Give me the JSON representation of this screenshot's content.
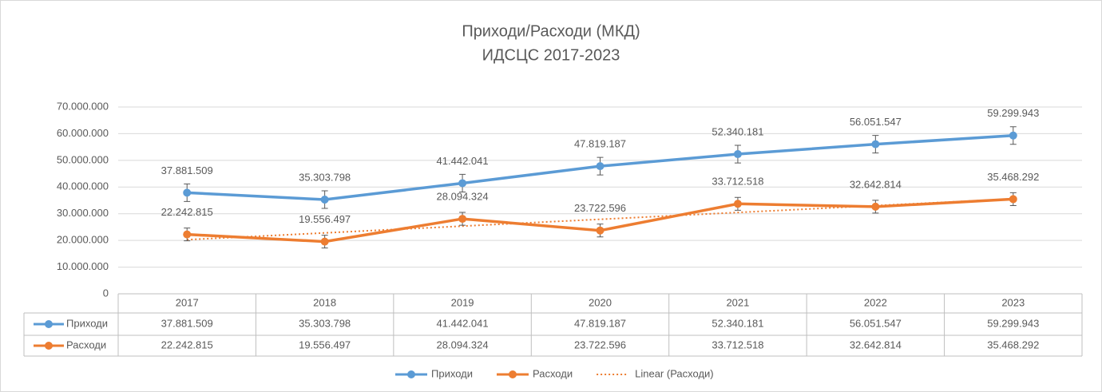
{
  "chart_data": {
    "type": "line",
    "title": "Приходи/Расходи  (МКД)",
    "subtitle": "ИДСЦС 2017-2023",
    "categories": [
      "2017",
      "2018",
      "2019",
      "2020",
      "2021",
      "2022",
      "2023"
    ],
    "series": [
      {
        "name": "Приходи",
        "color": "#5b9bd5",
        "values": [
          37881509,
          35303798,
          41442041,
          47819187,
          52340181,
          56051547,
          59299943
        ],
        "value_labels": [
          "37.881.509",
          "35.303.798",
          "41.442.041",
          "47.819.187",
          "52.340.181",
          "56.051.547",
          "59.299.943"
        ],
        "errors": [
          3300000,
          3300000,
          3300000,
          3300000,
          3300000,
          3300000,
          3300000
        ]
      },
      {
        "name": "Расходи",
        "color": "#ed7d31",
        "values": [
          22242815,
          19556497,
          28094324,
          23722596,
          33712518,
          32642814,
          35468292
        ],
        "value_labels": [
          "22.242.815",
          "19.556.497",
          "28.094.324",
          "23.722.596",
          "33.712.518",
          "32.642.814",
          "35.468.292"
        ],
        "errors": [
          2400000,
          2400000,
          2400000,
          2400000,
          2400000,
          2400000,
          2400000
        ]
      }
    ],
    "trendline": {
      "name": "Linear (Расходи)",
      "series": 1,
      "color": "#ed7d31"
    },
    "ylim": [
      0,
      70000000
    ],
    "yticks": [
      0,
      {
        "value": 10000000,
        "label": "10.000.000"
      },
      {
        "value": 20000000,
        "label": "20.000.000"
      },
      {
        "value": 30000000,
        "label": "30.000.000"
      },
      {
        "value": 40000000,
        "label": "40.000.000"
      },
      {
        "value": 50000000,
        "label": "50.000.000"
      },
      {
        "value": 60000000,
        "label": "60.000.000"
      },
      {
        "value": 70000000,
        "label": "70.000.000"
      }
    ],
    "grid": true,
    "legend": "bottom"
  }
}
